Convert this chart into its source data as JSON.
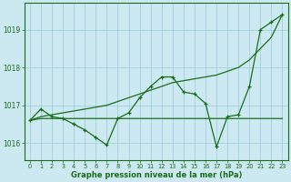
{
  "x": [
    0,
    1,
    2,
    3,
    4,
    5,
    6,
    7,
    8,
    9,
    10,
    11,
    12,
    13,
    14,
    15,
    16,
    17,
    18,
    19,
    20,
    21,
    22,
    23
  ],
  "line_flat": [
    1016.6,
    1016.65,
    1016.65,
    1016.65,
    1016.65,
    1016.65,
    1016.65,
    1016.65,
    1016.65,
    1016.65,
    1016.65,
    1016.65,
    1016.65,
    1016.65,
    1016.65,
    1016.65,
    1016.65,
    1016.65,
    1016.65,
    1016.65,
    1016.65,
    1016.65,
    1016.65,
    1016.65
  ],
  "line_rising": [
    1016.6,
    1016.7,
    1016.75,
    1016.8,
    1016.85,
    1016.9,
    1016.95,
    1017.0,
    1017.1,
    1017.2,
    1017.3,
    1017.4,
    1017.5,
    1017.6,
    1017.65,
    1017.7,
    1017.75,
    1017.8,
    1017.9,
    1018.0,
    1018.2,
    1018.5,
    1018.8,
    1019.4
  ],
  "line_zigzag": [
    1016.6,
    1016.9,
    1016.7,
    1016.65,
    1016.5,
    1016.35,
    1016.15,
    1015.95,
    1016.65,
    1016.8,
    1017.2,
    1017.5,
    1017.75,
    1017.75,
    1017.35,
    1017.3,
    1017.05,
    1015.9,
    1016.7,
    1016.75,
    1017.5,
    1019.0,
    1019.2,
    1019.4
  ],
  "bg_color": "#cce8f0",
  "grid_color": "#99ccdd",
  "line_color": "#1a6e1a",
  "ylabel_vals": [
    1016,
    1017,
    1018,
    1019
  ],
  "xlabel_vals": [
    0,
    1,
    2,
    3,
    4,
    5,
    6,
    7,
    8,
    9,
    10,
    11,
    12,
    13,
    14,
    15,
    16,
    17,
    18,
    19,
    20,
    21,
    22,
    23
  ],
  "xlabel": "Graphe pression niveau de la mer (hPa)",
  "ylim": [
    1015.55,
    1019.7
  ],
  "xlim": [
    -0.5,
    23.5
  ]
}
